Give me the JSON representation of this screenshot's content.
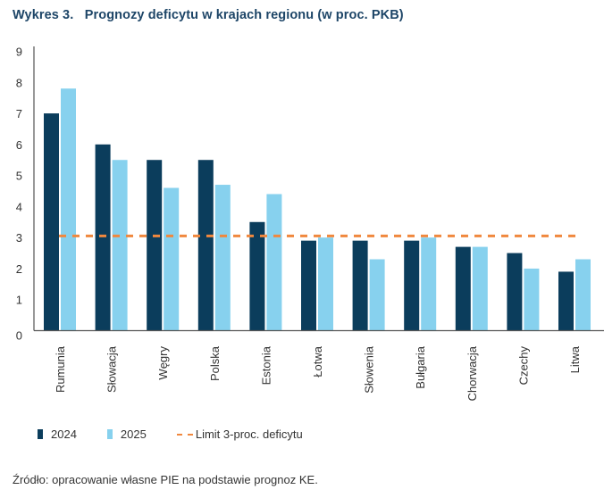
{
  "title": "Wykres 3.   Prognozy deficytu w krajach regionu (w proc. PKB)",
  "source": "Źródło: opracowanie własne PIE na podstawie prognoz KE.",
  "colors": {
    "series_2024": "#0b3d5c",
    "series_2025": "#87d1ee",
    "limit": "#f0883e",
    "title": "#1d4567",
    "axis": "#555555"
  },
  "legend": {
    "items": [
      {
        "label": "2024",
        "icon": "bar-swatch"
      },
      {
        "label": "2025",
        "icon": "bar-swatch"
      },
      {
        "label": "Limit 3-proc. deficytu",
        "icon": "dashed-line-swatch"
      }
    ]
  },
  "chart_data": {
    "type": "bar",
    "title": "Prognozy deficytu w krajach regionu (w proc. PKB)",
    "xlabel": "",
    "ylabel": "",
    "ylim": [
      0,
      9
    ],
    "yticks": [
      0,
      1,
      2,
      3,
      4,
      5,
      6,
      7,
      8,
      9
    ],
    "grid": false,
    "legend_position": "bottom-left",
    "categories": [
      "Rumunia",
      "Słowacja",
      "Węgry",
      "Polska",
      "Estonia",
      "Łotwa",
      "Słowenia",
      "Bułgaria",
      "Chorwacja",
      "Czechy",
      "Litwa"
    ],
    "series": [
      {
        "name": "2024",
        "values": [
          7.0,
          6.0,
          5.5,
          5.5,
          3.5,
          2.9,
          2.9,
          2.9,
          2.7,
          2.5,
          1.9
        ]
      },
      {
        "name": "2025",
        "values": [
          7.8,
          5.5,
          4.6,
          4.7,
          4.4,
          3.0,
          2.3,
          3.0,
          2.7,
          2.0,
          2.3
        ]
      }
    ],
    "reference_lines": [
      {
        "name": "Limit 3-proc. deficytu",
        "value": 3.05,
        "style": "dashed"
      }
    ]
  }
}
